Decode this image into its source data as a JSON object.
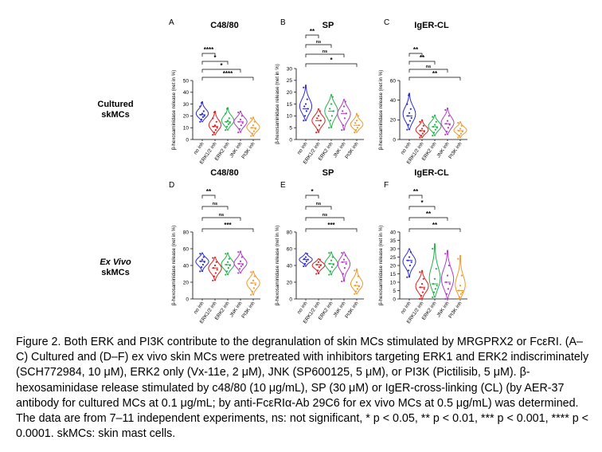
{
  "row_labels": [
    {
      "line1": "Cultured",
      "line2": "skMCs",
      "italic": false
    },
    {
      "line1": "Ex Vivo",
      "line2": "skMCs",
      "italic": true
    }
  ],
  "caption": "Figure 2. Both ERK and PI3K contribute to the degranulation of skin MCs stimulated by MRGPRX2 or FcεRI. (A–C) Cultured and (D–F) ex vivo skin MCs were pretreated with inhibitors targeting ERK1 and ERK2 indiscriminately (SCH772984, 10 μM), ERK2 only (Vx-11e, 2 μM), JNK (SP600125, 5 μM), or PI3K (Pictilisib, 5 μM). β-hexosaminidase release stimulated by c48/80 (10 μg/mL), SP (30 μM) or IgER-cross-linking (CL) (by AER-37 antibody for cultured MCs at 0.1 μg/mL; by anti-FcεRIα-Ab 29C6 for ex vivo MCs at 0.5 μg/mL) was determined. The data are from 7–11 independent experiments, ns: not significant, * p < 0.05, ** p < 0.01, *** p < 0.001, **** p < 0.0001. skMCs: skin mast cells.",
  "colors": {
    "no inh": "#2b2bd6",
    "ERK1/2 inh": "#e02020",
    "ERK2 inh": "#22b14c",
    "JNK inh": "#b23bc6",
    "PI3K inh": "#f09a2a"
  },
  "chart_data": [
    {
      "panel": "A",
      "type": "violin",
      "title": "C48/80",
      "ylabel": "β-hexosaminidase release (net in %)",
      "categories": [
        "no inh",
        "ERK1/2 inh",
        "ERK2 inh",
        "JNK inh",
        "PI3K inh"
      ],
      "ylim": [
        0,
        50
      ],
      "yticks": [
        0,
        10,
        20,
        30,
        40,
        50
      ],
      "series": [
        {
          "name": "no inh",
          "min": 15,
          "max": 32,
          "median": 21,
          "points": [
            15,
            17,
            19,
            20,
            21,
            22,
            24,
            28,
            31
          ]
        },
        {
          "name": "ERK1/2 inh",
          "min": 4,
          "max": 24,
          "median": 11,
          "points": [
            4,
            6,
            8,
            10,
            11,
            12,
            15,
            18,
            23
          ]
        },
        {
          "name": "ERK2 inh",
          "min": 8,
          "max": 27,
          "median": 15,
          "points": [
            8,
            11,
            13,
            14,
            15,
            16,
            18,
            22,
            26
          ]
        },
        {
          "name": "JNK inh",
          "min": 6,
          "max": 24,
          "median": 15,
          "points": [
            6,
            9,
            12,
            14,
            15,
            17,
            20,
            23
          ]
        },
        {
          "name": "PI3K inh",
          "min": 3,
          "max": 19,
          "median": 10,
          "points": [
            3,
            5,
            7,
            9,
            10,
            12,
            15,
            18
          ]
        }
      ],
      "significance": [
        {
          "target": "ERK1/2 inh",
          "label": "****"
        },
        {
          "target": "ERK2 inh",
          "label": "*"
        },
        {
          "target": "JNK inh",
          "label": "*"
        },
        {
          "target": "PI3K inh",
          "label": "****"
        }
      ]
    },
    {
      "panel": "B",
      "type": "violin",
      "title": "SP",
      "ylabel": "β-hexosaminidase release (net in %)",
      "categories": [
        "no inh",
        "ERK1/2 inh",
        "ERK2 inh",
        "JNK inh",
        "PI3K inh"
      ],
      "ylim": [
        0,
        30
      ],
      "yticks": [
        0,
        5,
        10,
        15,
        20,
        25,
        30
      ],
      "series": [
        {
          "name": "no inh",
          "min": 8,
          "max": 23,
          "median": 13,
          "points": [
            8,
            10,
            12,
            13,
            14,
            15,
            17,
            22
          ]
        },
        {
          "name": "ERK1/2 inh",
          "min": 3,
          "max": 13,
          "median": 8,
          "points": [
            3,
            4,
            6,
            8,
            9,
            10,
            12
          ]
        },
        {
          "name": "ERK2 inh",
          "min": 5,
          "max": 19,
          "median": 12,
          "points": [
            5,
            8,
            10,
            12,
            13,
            15,
            18
          ]
        },
        {
          "name": "JNK inh",
          "min": 4,
          "max": 17,
          "median": 11,
          "points": [
            4,
            6,
            9,
            11,
            12,
            14,
            16
          ]
        },
        {
          "name": "PI3K inh",
          "min": 3,
          "max": 11,
          "median": 6,
          "points": [
            3,
            4,
            5,
            6,
            7,
            8,
            10
          ]
        }
      ],
      "significance": [
        {
          "target": "ERK1/2 inh",
          "label": "**"
        },
        {
          "target": "ERK2 inh",
          "label": "ns"
        },
        {
          "target": "JNK inh",
          "label": "ns"
        },
        {
          "target": "PI3K inh",
          "label": "*"
        }
      ]
    },
    {
      "panel": "C",
      "type": "violin",
      "title": "IgER-CL",
      "ylabel": "β-hexosaminidase release (net in %)",
      "categories": [
        "no inh",
        "ERK1/2 inh",
        "ERK2 inh",
        "JNK inh",
        "PI3K inh"
      ],
      "ylim": [
        0,
        60
      ],
      "yticks": [
        0,
        20,
        40,
        60
      ],
      "series": [
        {
          "name": "no inh",
          "min": 10,
          "max": 47,
          "median": 24,
          "points": [
            10,
            15,
            19,
            22,
            24,
            27,
            31,
            36,
            45
          ]
        },
        {
          "name": "ERK1/2 inh",
          "min": 2,
          "max": 20,
          "median": 9,
          "points": [
            2,
            4,
            6,
            8,
            9,
            11,
            14,
            18
          ]
        },
        {
          "name": "ERK2 inh",
          "min": 4,
          "max": 25,
          "median": 13,
          "points": [
            4,
            7,
            10,
            12,
            13,
            15,
            18,
            23
          ]
        },
        {
          "name": "JNK inh",
          "min": 5,
          "max": 32,
          "median": 16,
          "points": [
            5,
            8,
            12,
            15,
            16,
            19,
            24,
            30
          ]
        },
        {
          "name": "PI3K inh",
          "min": 2,
          "max": 18,
          "median": 9,
          "points": [
            2,
            4,
            6,
            8,
            9,
            11,
            14,
            17
          ]
        }
      ],
      "significance": [
        {
          "target": "ERK1/2 inh",
          "label": "**"
        },
        {
          "target": "ERK2 inh",
          "label": "**"
        },
        {
          "target": "JNK inh",
          "label": "ns"
        },
        {
          "target": "PI3K inh",
          "label": "**"
        }
      ]
    },
    {
      "panel": "D",
      "type": "violin",
      "title": "C48/80",
      "ylabel": "β-hexosaminidase release (net in %)",
      "categories": [
        "no inh",
        "ERK1/2 inh",
        "ERK2 inh",
        "JNK inh",
        "PI3K inh"
      ],
      "ylim": [
        0,
        80
      ],
      "yticks": [
        0,
        20,
        40,
        60,
        80
      ],
      "series": [
        {
          "name": "no inh",
          "min": 33,
          "max": 55,
          "median": 45,
          "points": [
            33,
            38,
            41,
            44,
            45,
            47,
            50,
            54
          ]
        },
        {
          "name": "ERK1/2 inh",
          "min": 22,
          "max": 50,
          "median": 37,
          "points": [
            22,
            27,
            31,
            35,
            37,
            40,
            44,
            49
          ]
        },
        {
          "name": "ERK2 inh",
          "min": 29,
          "max": 55,
          "median": 41,
          "points": [
            29,
            33,
            37,
            40,
            41,
            44,
            48,
            54
          ]
        },
        {
          "name": "JNK inh",
          "min": 31,
          "max": 57,
          "median": 42,
          "points": [
            31,
            36,
            39,
            41,
            42,
            45,
            50,
            56
          ]
        },
        {
          "name": "PI3K inh",
          "min": 5,
          "max": 33,
          "median": 19,
          "points": [
            5,
            9,
            13,
            17,
            19,
            22,
            27,
            32
          ]
        }
      ],
      "significance": [
        {
          "target": "ERK1/2 inh",
          "label": "**"
        },
        {
          "target": "ERK2 inh",
          "label": "ns"
        },
        {
          "target": "JNK inh",
          "label": "ns"
        },
        {
          "target": "PI3K inh",
          "label": "***"
        }
      ]
    },
    {
      "panel": "E",
      "type": "violin",
      "title": "SP",
      "ylabel": "β-hexosaminidase release (net in %)",
      "categories": [
        "no inh",
        "ERK1/2 inh",
        "ERK2 inh",
        "JNK inh",
        "PI3K inh"
      ],
      "ylim": [
        0,
        80
      ],
      "yticks": [
        0,
        20,
        40,
        60,
        80
      ],
      "series": [
        {
          "name": "no inh",
          "min": 39,
          "max": 55,
          "median": 47,
          "points": [
            39,
            42,
            45,
            47,
            48,
            50,
            54
          ]
        },
        {
          "name": "ERK1/2 inh",
          "min": 30,
          "max": 48,
          "median": 41,
          "points": [
            30,
            34,
            38,
            40,
            41,
            44,
            47
          ]
        },
        {
          "name": "ERK2 inh",
          "min": 29,
          "max": 56,
          "median": 42,
          "points": [
            29,
            33,
            38,
            41,
            42,
            46,
            50,
            55
          ]
        },
        {
          "name": "JNK inh",
          "min": 21,
          "max": 56,
          "median": 44,
          "points": [
            21,
            30,
            37,
            42,
            44,
            47,
            52,
            55
          ]
        },
        {
          "name": "PI3K inh",
          "min": 6,
          "max": 36,
          "median": 16,
          "points": [
            6,
            9,
            12,
            15,
            16,
            20,
            27,
            34
          ]
        }
      ],
      "significance": [
        {
          "target": "ERK1/2 inh",
          "label": "*"
        },
        {
          "target": "ERK2 inh",
          "label": "ns"
        },
        {
          "target": "JNK inh",
          "label": "ns"
        },
        {
          "target": "PI3K inh",
          "label": "***"
        }
      ]
    },
    {
      "panel": "F",
      "type": "violin",
      "title": "IgER-CL",
      "ylabel": "β-hexosaminidase release (net in %)",
      "categories": [
        "no inh",
        "ERK1/2 inh",
        "ERK2 inh",
        "JNK inh",
        "PI3K inh"
      ],
      "ylim": [
        0,
        40
      ],
      "yticks": [
        0,
        5,
        10,
        15,
        20,
        25,
        30,
        35,
        40
      ],
      "series": [
        {
          "name": "no inh",
          "min": 13,
          "max": 30,
          "median": 23,
          "points": [
            13,
            17,
            20,
            22,
            23,
            25,
            28
          ]
        },
        {
          "name": "ERK1/2 inh",
          "min": 0,
          "max": 17,
          "median": 7,
          "points": [
            0,
            2,
            4,
            6,
            7,
            9,
            12,
            16
          ]
        },
        {
          "name": "ERK2 inh",
          "min": 1,
          "max": 33,
          "median": 9,
          "points": [
            1,
            4,
            6,
            8,
            9,
            12,
            18,
            30
          ]
        },
        {
          "name": "JNK inh",
          "min": 0,
          "max": 29,
          "median": 10,
          "points": [
            0,
            3,
            6,
            9,
            10,
            14,
            20,
            27
          ]
        },
        {
          "name": "PI3K inh",
          "min": 0,
          "max": 26,
          "median": 5,
          "points": [
            0,
            1,
            3,
            4,
            5,
            8,
            14,
            24
          ]
        }
      ],
      "significance": [
        {
          "target": "ERK1/2 inh",
          "label": "**"
        },
        {
          "target": "ERK2 inh",
          "label": "*"
        },
        {
          "target": "JNK inh",
          "label": "**"
        },
        {
          "target": "PI3K inh",
          "label": "**"
        }
      ]
    }
  ]
}
